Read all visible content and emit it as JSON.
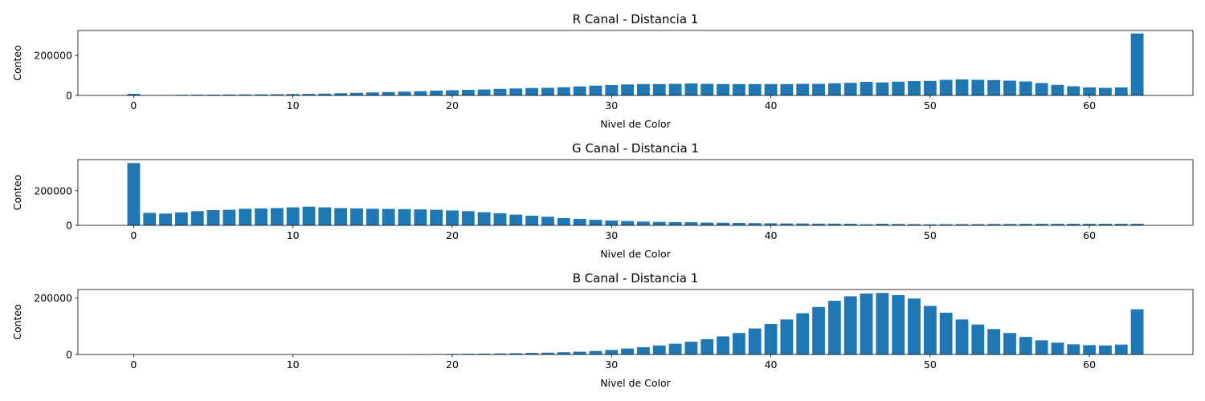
{
  "chart_data": [
    {
      "type": "bar",
      "title": "R Canal - Distancia 1",
      "xlabel": "Nivel de Color",
      "ylabel": "Conteo",
      "xlim": [
        -3.5,
        66.5
      ],
      "ylim": [
        0,
        325000
      ],
      "xticks": [
        0,
        10,
        20,
        30,
        40,
        50,
        60
      ],
      "yticks": [
        0,
        200000
      ],
      "color": "#1f77b4",
      "x": [
        0,
        1,
        2,
        3,
        4,
        5,
        6,
        7,
        8,
        9,
        10,
        11,
        12,
        13,
        14,
        15,
        16,
        17,
        18,
        19,
        20,
        21,
        22,
        23,
        24,
        25,
        26,
        27,
        28,
        29,
        30,
        31,
        32,
        33,
        34,
        35,
        36,
        37,
        38,
        39,
        40,
        41,
        42,
        43,
        44,
        45,
        46,
        47,
        48,
        49,
        50,
        51,
        52,
        53,
        54,
        55,
        56,
        57,
        58,
        59,
        60,
        61,
        62,
        63
      ],
      "values": [
        8000,
        1000,
        1500,
        3000,
        3500,
        4000,
        4500,
        5000,
        5500,
        6000,
        7000,
        7500,
        9000,
        11000,
        13000,
        15000,
        17000,
        19000,
        21000,
        24000,
        26000,
        28000,
        30000,
        33000,
        35000,
        37000,
        38000,
        41000,
        45000,
        49000,
        52000,
        55000,
        57000,
        57000,
        58000,
        60000,
        58000,
        57000,
        57000,
        57000,
        57000,
        57000,
        58000,
        58000,
        61000,
        63000,
        68000,
        65000,
        69000,
        72000,
        73000,
        78000,
        80000,
        78000,
        77000,
        74000,
        70000,
        62000,
        53000,
        46000,
        40000,
        38000,
        40000,
        310000
      ]
    },
    {
      "type": "bar",
      "title": "G Canal - Distancia 1",
      "xlabel": "Nivel de Color",
      "ylabel": "Conteo",
      "xlim": [
        -3.5,
        66.5
      ],
      "ylim": [
        0,
        380000
      ],
      "xticks": [
        0,
        10,
        20,
        30,
        40,
        50,
        60
      ],
      "yticks": [
        0,
        200000
      ],
      "color": "#1f77b4",
      "x": [
        0,
        1,
        2,
        3,
        4,
        5,
        6,
        7,
        8,
        9,
        10,
        11,
        12,
        13,
        14,
        15,
        16,
        17,
        18,
        19,
        20,
        21,
        22,
        23,
        24,
        25,
        26,
        27,
        28,
        29,
        30,
        31,
        32,
        33,
        34,
        35,
        36,
        37,
        38,
        39,
        40,
        41,
        42,
        43,
        44,
        45,
        46,
        47,
        48,
        49,
        50,
        51,
        52,
        53,
        54,
        55,
        56,
        57,
        58,
        59,
        60,
        61,
        62,
        63
      ],
      "values": [
        360000,
        72000,
        68000,
        75000,
        82000,
        88000,
        90000,
        96000,
        98000,
        100000,
        104000,
        108000,
        104000,
        100000,
        98000,
        96000,
        95000,
        94000,
        92000,
        90000,
        86000,
        82000,
        76000,
        70000,
        62000,
        56000,
        50000,
        42000,
        37000,
        32000,
        28000,
        25000,
        22000,
        20000,
        19000,
        18000,
        16000,
        15000,
        14000,
        13000,
        12000,
        11000,
        11000,
        10000,
        10000,
        9000,
        6000,
        9000,
        8000,
        7000,
        6000,
        6500,
        7000,
        7000,
        7500,
        8000,
        8500,
        8500,
        9000,
        9000,
        9000,
        9000,
        9000,
        9000
      ]
    },
    {
      "type": "bar",
      "title": "B Canal - Distancia 1",
      "xlabel": "Nivel de Color",
      "ylabel": "Conteo",
      "xlim": [
        -3.5,
        66.5
      ],
      "ylim": [
        0,
        230000
      ],
      "xticks": [
        0,
        10,
        20,
        30,
        40,
        50,
        60
      ],
      "yticks": [
        0,
        200000
      ],
      "color": "#1f77b4",
      "x": [
        0,
        1,
        2,
        3,
        4,
        5,
        6,
        7,
        8,
        9,
        10,
        11,
        12,
        13,
        14,
        15,
        16,
        17,
        18,
        19,
        20,
        21,
        22,
        23,
        24,
        25,
        26,
        27,
        28,
        29,
        30,
        31,
        32,
        33,
        34,
        35,
        36,
        37,
        38,
        39,
        40,
        41,
        42,
        43,
        44,
        45,
        46,
        47,
        48,
        49,
        50,
        51,
        52,
        53,
        54,
        55,
        56,
        57,
        58,
        59,
        60,
        61,
        62,
        63
      ],
      "values": [
        0,
        0,
        0,
        0,
        0,
        0,
        0,
        0,
        0,
        0,
        0,
        0,
        0,
        0,
        0,
        0,
        0,
        0,
        1000,
        1500,
        2000,
        2500,
        3000,
        3500,
        4500,
        5500,
        6500,
        8000,
        10000,
        12500,
        16000,
        21000,
        26000,
        32000,
        38000,
        45000,
        54000,
        64000,
        76000,
        92000,
        108000,
        124000,
        146000,
        168000,
        190000,
        206000,
        216000,
        218000,
        210000,
        198000,
        172000,
        148000,
        124000,
        106000,
        90000,
        76000,
        62000,
        50000,
        42000,
        36000,
        33000,
        32000,
        35000,
        160000
      ]
    }
  ]
}
